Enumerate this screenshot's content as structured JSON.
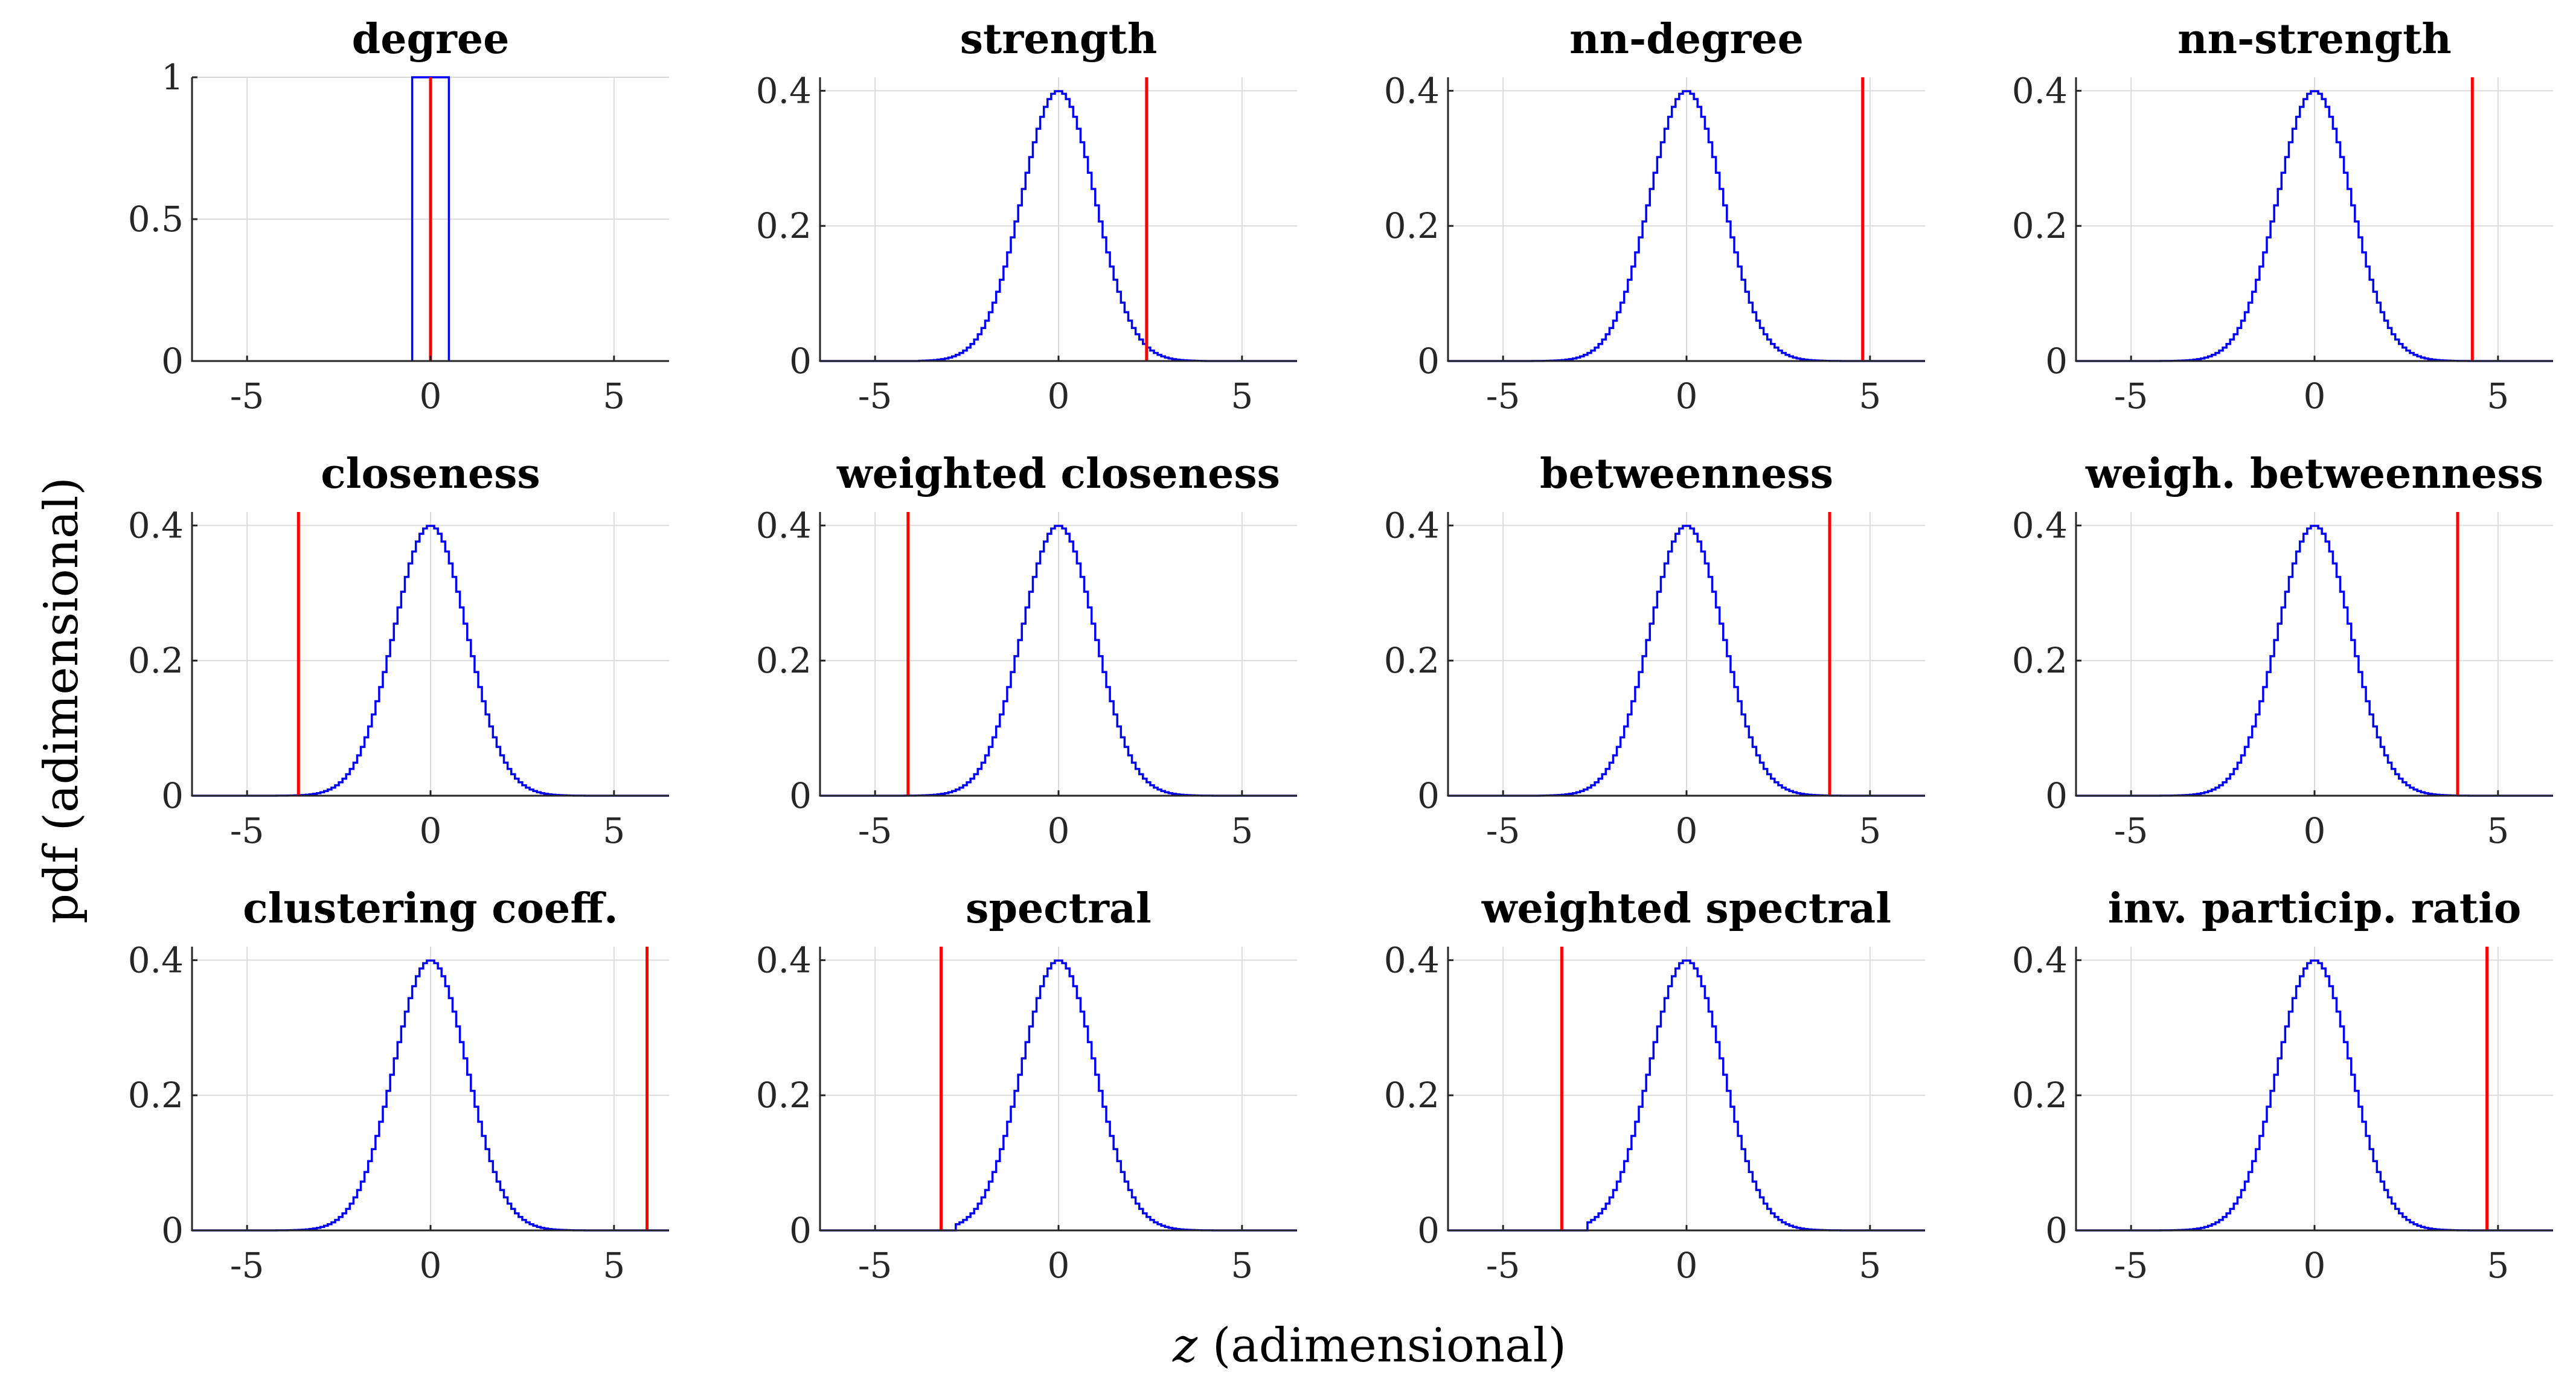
{
  "figure": {
    "xlabel_italic": "z",
    "xlabel_rest": " (adimensional)",
    "ylabel": "pdf (adimensional)"
  },
  "chart_data": [
    {
      "type": "histogram",
      "title": "degree",
      "special": "degenerate",
      "xlim": [
        -6.5,
        6.5
      ],
      "ylim": [
        0,
        1
      ],
      "xticks": [
        -5,
        0,
        5
      ],
      "yticks": [
        0,
        0.5,
        1
      ],
      "ytick_labels": [
        "0",
        "0.5",
        "1"
      ],
      "bin_edges": [
        -0.5,
        0.5
      ],
      "bin_heights": [
        1
      ],
      "observed_z": 0
    },
    {
      "type": "histogram",
      "title": "strength",
      "xlim": [
        -6.5,
        6.5
      ],
      "ylim": [
        0,
        0.42
      ],
      "xticks": [
        -5,
        0,
        5
      ],
      "yticks": [
        0,
        0.2,
        0.4
      ],
      "ytick_labels": [
        "0",
        "0.2",
        "0.4"
      ],
      "mean": 0,
      "sd": 1,
      "peak": 0.4,
      "support": [
        -3.8,
        4.0
      ],
      "observed_z": 2.4
    },
    {
      "type": "histogram",
      "title": "nn-degree",
      "xlim": [
        -6.5,
        6.5
      ],
      "ylim": [
        0,
        0.42
      ],
      "xticks": [
        -5,
        0,
        5
      ],
      "yticks": [
        0,
        0.2,
        0.4
      ],
      "ytick_labels": [
        "0",
        "0.2",
        "0.4"
      ],
      "mean": 0,
      "sd": 1,
      "peak": 0.4,
      "support": [
        -4.6,
        4.4
      ],
      "observed_z": 4.8
    },
    {
      "type": "histogram",
      "title": "nn-strength",
      "xlim": [
        -6.5,
        6.5
      ],
      "ylim": [
        0,
        0.42
      ],
      "xticks": [
        -5,
        0,
        5
      ],
      "yticks": [
        0,
        0.2,
        0.4
      ],
      "ytick_labels": [
        "0",
        "0.2",
        "0.4"
      ],
      "mean": 0,
      "sd": 1,
      "peak": 0.4,
      "support": [
        -4.5,
        4.5
      ],
      "observed_z": 4.3
    },
    {
      "type": "histogram",
      "title": "closeness",
      "xlim": [
        -6.5,
        6.5
      ],
      "ylim": [
        0,
        0.42
      ],
      "xticks": [
        -5,
        0,
        5
      ],
      "yticks": [
        0,
        0.2,
        0.4
      ],
      "ytick_labels": [
        "0",
        "0.2",
        "0.4"
      ],
      "mean": 0,
      "sd": 1,
      "peak": 0.4,
      "support": [
        -5.0,
        4.6
      ],
      "observed_z": -3.6
    },
    {
      "type": "histogram",
      "title": "weighted closeness",
      "xlim": [
        -6.5,
        6.5
      ],
      "ylim": [
        0,
        0.42
      ],
      "xticks": [
        -5,
        0,
        5
      ],
      "yticks": [
        0,
        0.2,
        0.4
      ],
      "ytick_labels": [
        "0",
        "0.2",
        "0.4"
      ],
      "mean": 0,
      "sd": 1,
      "peak": 0.4,
      "support": [
        -4.6,
        4.6
      ],
      "observed_z": -4.1
    },
    {
      "type": "histogram",
      "title": "betweenness",
      "xlim": [
        -6.5,
        6.5
      ],
      "ylim": [
        0,
        0.42
      ],
      "xticks": [
        -5,
        0,
        5
      ],
      "yticks": [
        0,
        0.2,
        0.4
      ],
      "ytick_labels": [
        "0",
        "0.2",
        "0.4"
      ],
      "mean": 0,
      "sd": 1,
      "peak": 0.4,
      "support": [
        -4.0,
        4.8
      ],
      "observed_z": 3.9
    },
    {
      "type": "histogram",
      "title": "weigh. betweenness",
      "xlim": [
        -6.5,
        6.5
      ],
      "ylim": [
        0,
        0.42
      ],
      "xticks": [
        -5,
        0,
        5
      ],
      "yticks": [
        0,
        0.2,
        0.4
      ],
      "ytick_labels": [
        "0",
        "0.2",
        "0.4"
      ],
      "mean": 0,
      "sd": 1,
      "peak": 0.4,
      "support": [
        -4.6,
        4.6
      ],
      "observed_z": 3.9
    },
    {
      "type": "histogram",
      "title": "clustering coeff.",
      "xlim": [
        -6.5,
        6.5
      ],
      "ylim": [
        0,
        0.42
      ],
      "xticks": [
        -5,
        0,
        5
      ],
      "yticks": [
        0,
        0.2,
        0.4
      ],
      "ytick_labels": [
        "0",
        "0.2",
        "0.4"
      ],
      "mean": 0,
      "sd": 1,
      "peak": 0.4,
      "support": [
        -4.4,
        4.4
      ],
      "observed_z": 5.9
    },
    {
      "type": "histogram",
      "title": "spectral",
      "xlim": [
        -6.5,
        6.5
      ],
      "ylim": [
        0,
        0.42
      ],
      "xticks": [
        -5,
        0,
        5
      ],
      "yticks": [
        0,
        0.2,
        0.4
      ],
      "ytick_labels": [
        "0",
        "0.2",
        "0.4"
      ],
      "mean": 0,
      "sd": 1,
      "peak": 0.4,
      "support": [
        -2.8,
        5.0
      ],
      "observed_z": -3.2
    },
    {
      "type": "histogram",
      "title": "weighted spectral",
      "xlim": [
        -6.5,
        6.5
      ],
      "ylim": [
        0,
        0.42
      ],
      "xticks": [
        -5,
        0,
        5
      ],
      "yticks": [
        0,
        0.2,
        0.4
      ],
      "ytick_labels": [
        "0",
        "0.2",
        "0.4"
      ],
      "mean": 0,
      "sd": 1,
      "peak": 0.4,
      "support": [
        -2.7,
        5.0
      ],
      "observed_z": -3.4
    },
    {
      "type": "histogram",
      "title": "inv. particip. ratio",
      "xlim": [
        -6.5,
        6.5
      ],
      "ylim": [
        0,
        0.42
      ],
      "xticks": [
        -5,
        0,
        5
      ],
      "yticks": [
        0,
        0.2,
        0.4
      ],
      "ytick_labels": [
        "0",
        "0.2",
        "0.4"
      ],
      "mean": 0,
      "sd": 1,
      "peak": 0.4,
      "support": [
        -4.4,
        4.6
      ],
      "observed_z": 4.7
    }
  ]
}
